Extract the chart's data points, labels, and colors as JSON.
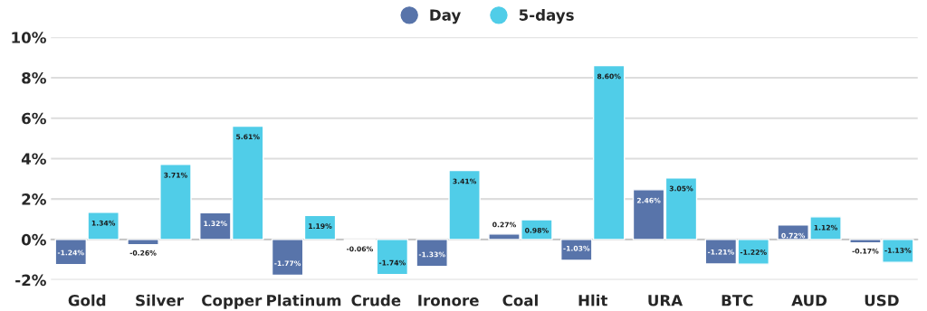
{
  "chart_data": {
    "type": "bar",
    "categories": [
      "Gold",
      "Silver",
      "Copper",
      "Platinum",
      "Crude",
      "Ironore",
      "Coal",
      "Hlit",
      "URA",
      "BTC",
      "AUD",
      "USD"
    ],
    "series": [
      {
        "name": "Day",
        "color": "#5874aa",
        "values": [
          -1.24,
          -0.26,
          1.32,
          -1.77,
          -0.06,
          -1.33,
          0.27,
          -1.03,
          2.46,
          -1.21,
          0.72,
          -0.17
        ],
        "value_labels": [
          "-1.24%",
          "-0.26%",
          "1.32%",
          "-1.77%",
          "-0.06%",
          "-1.33%",
          "0.27%",
          "-1.03%",
          "2.46%",
          "-1.21%",
          "0.72%",
          "-0.17%"
        ]
      },
      {
        "name": "5-days",
        "color": "#50cde8",
        "values": [
          1.34,
          3.71,
          5.61,
          1.19,
          -1.74,
          3.41,
          0.98,
          8.6,
          3.05,
          -1.22,
          1.12,
          -1.13
        ],
        "value_labels": [
          "1.34%",
          "3.71%",
          "5.61%",
          "1.19%",
          "-1.74%",
          "3.41%",
          "0.98%",
          "8.60%",
          "3.05%",
          "-1.22%",
          "1.12%",
          "-1.13%"
        ]
      }
    ],
    "ylim": [
      -2,
      10
    ],
    "yticks": [
      {
        "value": -2,
        "label": "-2%"
      },
      {
        "value": 0,
        "label": "0%"
      },
      {
        "value": 2,
        "label": "2%"
      },
      {
        "value": 4,
        "label": "4%"
      },
      {
        "value": 6,
        "label": "6%"
      },
      {
        "value": 8,
        "label": "8%"
      },
      {
        "value": 10,
        "label": "10%"
      }
    ],
    "grid": "y",
    "legend": "top"
  }
}
